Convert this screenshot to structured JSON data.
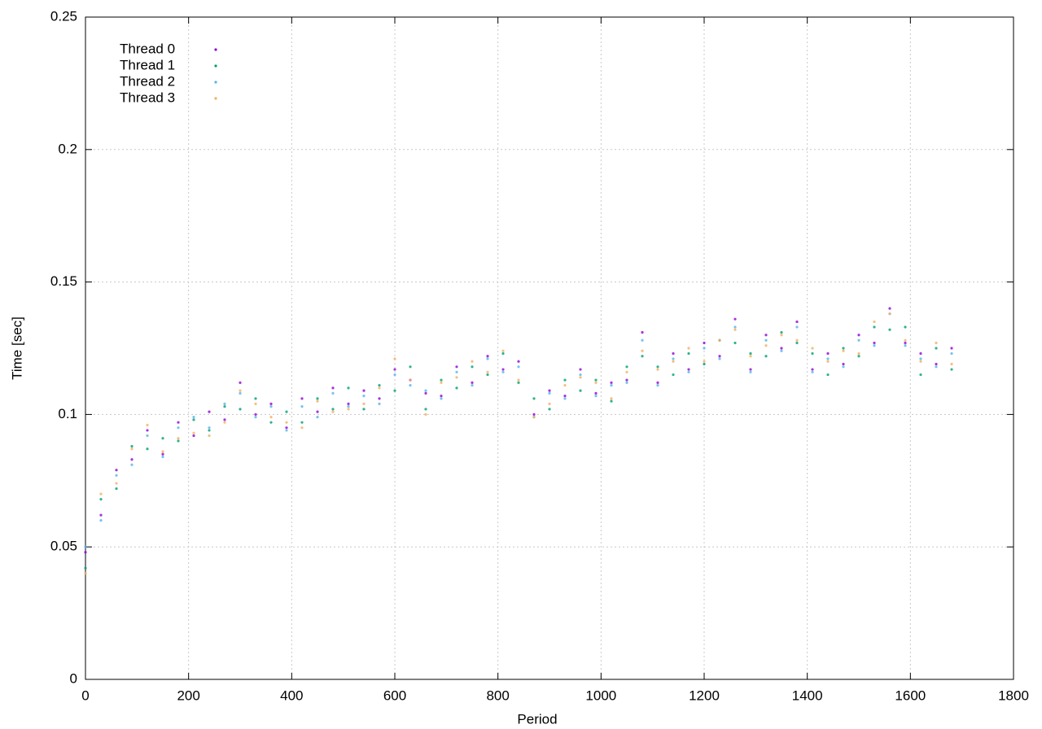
{
  "chart_data": {
    "type": "scatter",
    "x_label": "Period",
    "y_label": "Time [sec]",
    "x": [
      0,
      30,
      60,
      90,
      120,
      150,
      180,
      210,
      240,
      270,
      300,
      330,
      360,
      390,
      420,
      450,
      480,
      510,
      540,
      570,
      600,
      630,
      660,
      690,
      720,
      750,
      780,
      810,
      840,
      870,
      900,
      930,
      960,
      990,
      1020,
      1050,
      1080,
      1110,
      1140,
      1170,
      1200,
      1230,
      1260,
      1290,
      1320,
      1350,
      1380,
      1410,
      1440,
      1470,
      1500,
      1530,
      1560,
      1590,
      1620,
      1650,
      1680
    ],
    "series": [
      {
        "name": "Thread 0",
        "color": "#9400d3",
        "values": [
          0.048,
          0.062,
          0.079,
          0.083,
          0.094,
          0.085,
          0.097,
          0.092,
          0.101,
          0.098,
          0.112,
          0.1,
          0.104,
          0.095,
          0.106,
          0.101,
          0.11,
          0.104,
          0.109,
          0.106,
          0.117,
          0.113,
          0.108,
          0.107,
          0.118,
          0.112,
          0.122,
          0.117,
          0.12,
          0.1,
          0.109,
          0.107,
          0.117,
          0.108,
          0.112,
          0.113,
          0.131,
          0.112,
          0.123,
          0.117,
          0.127,
          0.122,
          0.136,
          0.117,
          0.13,
          0.125,
          0.135,
          0.117,
          0.123,
          0.119,
          0.13,
          0.127,
          0.14,
          0.127,
          0.123,
          0.119,
          0.125
        ]
      },
      {
        "name": "Thread 1",
        "color": "#009e73",
        "values": [
          0.042,
          0.068,
          0.072,
          0.088,
          0.087,
          0.091,
          0.09,
          0.098,
          0.094,
          0.103,
          0.102,
          0.106,
          0.097,
          0.101,
          0.097,
          0.106,
          0.102,
          0.11,
          0.102,
          0.111,
          0.109,
          0.118,
          0.102,
          0.113,
          0.11,
          0.118,
          0.115,
          0.123,
          0.112,
          0.106,
          0.102,
          0.113,
          0.109,
          0.113,
          0.105,
          0.118,
          0.122,
          0.118,
          0.115,
          0.123,
          0.119,
          0.128,
          0.127,
          0.123,
          0.122,
          0.131,
          0.127,
          0.123,
          0.115,
          0.125,
          0.122,
          0.133,
          0.132,
          0.133,
          0.115,
          0.125,
          0.117
        ]
      },
      {
        "name": "Thread 2",
        "color": "#56b4e9",
        "values": [
          0.05,
          0.06,
          0.077,
          0.081,
          0.092,
          0.084,
          0.095,
          0.099,
          0.095,
          0.104,
          0.108,
          0.099,
          0.103,
          0.094,
          0.103,
          0.099,
          0.108,
          0.103,
          0.107,
          0.104,
          0.115,
          0.111,
          0.109,
          0.106,
          0.116,
          0.111,
          0.121,
          0.116,
          0.118,
          0.099,
          0.108,
          0.106,
          0.115,
          0.107,
          0.111,
          0.112,
          0.128,
          0.111,
          0.121,
          0.116,
          0.125,
          0.121,
          0.133,
          0.116,
          0.128,
          0.124,
          0.133,
          0.116,
          0.121,
          0.118,
          0.128,
          0.126,
          0.138,
          0.126,
          0.121,
          0.118,
          0.123
        ]
      },
      {
        "name": "Thread 3",
        "color": "#f0b060",
        "values": [
          0.04,
          0.07,
          0.074,
          0.087,
          0.096,
          0.086,
          0.091,
          0.093,
          0.092,
          0.097,
          0.109,
          0.104,
          0.099,
          0.097,
          0.095,
          0.105,
          0.101,
          0.102,
          0.104,
          0.11,
          0.121,
          0.113,
          0.1,
          0.112,
          0.114,
          0.12,
          0.116,
          0.124,
          0.113,
          0.099,
          0.104,
          0.111,
          0.114,
          0.112,
          0.106,
          0.116,
          0.124,
          0.117,
          0.12,
          0.125,
          0.12,
          0.128,
          0.132,
          0.122,
          0.126,
          0.13,
          0.128,
          0.125,
          0.12,
          0.124,
          0.123,
          0.135,
          0.138,
          0.128,
          0.12,
          0.127,
          0.119
        ]
      }
    ],
    "xlim": [
      0,
      1800
    ],
    "xticks": [
      0,
      200,
      400,
      600,
      800,
      1000,
      1200,
      1400,
      1600,
      1800
    ],
    "ylim": [
      0,
      0.25
    ],
    "yticks": [
      0,
      0.05,
      0.1,
      0.15,
      0.2,
      0.25
    ],
    "grid": true,
    "legend": "top-left"
  }
}
